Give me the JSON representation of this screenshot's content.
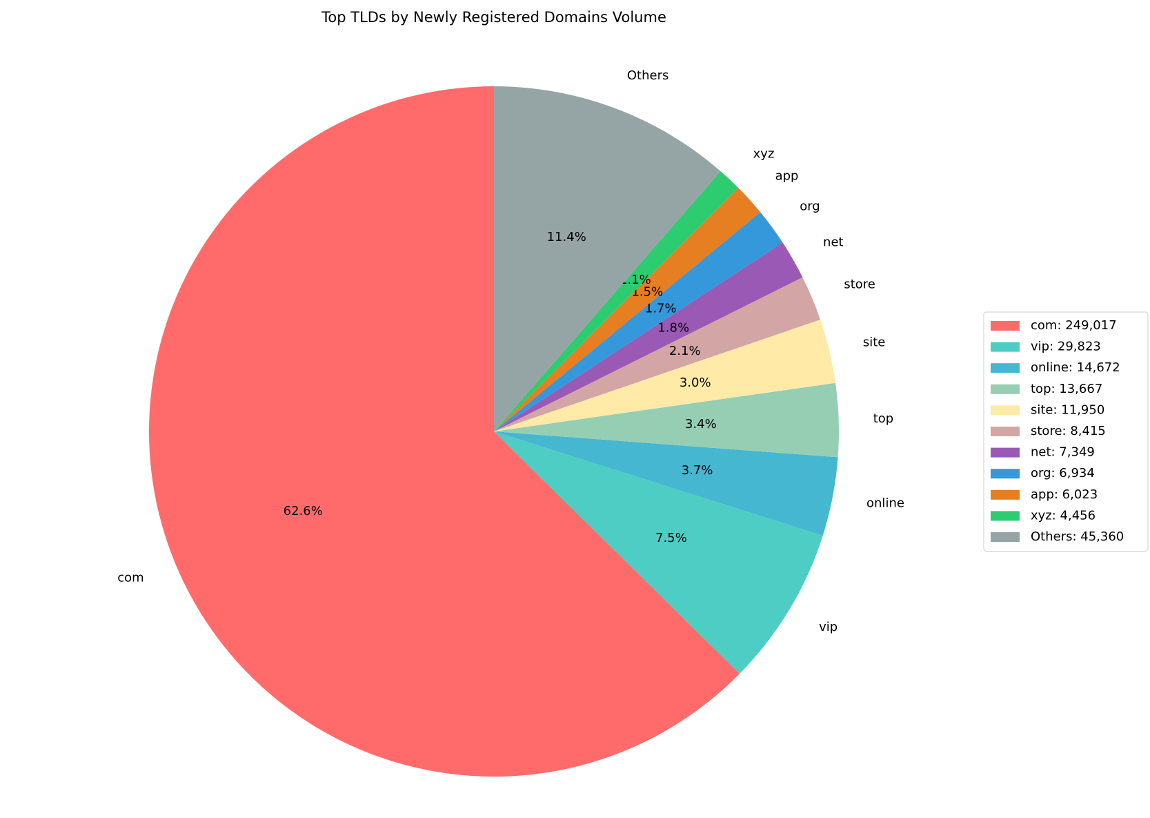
{
  "chart_data": {
    "type": "pie",
    "title": "Top TLDs by Newly Registered Domains Volume",
    "categories": [
      "com",
      "vip",
      "online",
      "top",
      "site",
      "store",
      "net",
      "org",
      "app",
      "xyz",
      "Others"
    ],
    "values": [
      249017,
      29823,
      14672,
      13667,
      11950,
      8415,
      7349,
      6934,
      6023,
      4456,
      45360
    ],
    "value_labels": [
      "62.6%",
      "7.5%",
      "3.7%",
      "3.4%",
      "3.0%",
      "2.1%",
      "1.8%",
      "1.7%",
      "1.5%",
      "1.1%",
      "11.4%"
    ],
    "legend_labels": [
      "com: 249,017",
      "vip: 29,823",
      "online: 14,672",
      "top: 13,667",
      "site: 11,950",
      "store: 8,415",
      "net: 7,349",
      "org: 6,934",
      "app: 6,023",
      "xyz: 4,456",
      "Others: 45,360"
    ],
    "colors": [
      "#ff6b6b",
      "#4ecdc4",
      "#45b7d1",
      "#96ceb4",
      "#ffeaa7",
      "#d4a5a5",
      "#9b59b6",
      "#3498db",
      "#e67e22",
      "#2ecc71",
      "#95a5a6"
    ],
    "start_angle": 90,
    "counterclockwise": true,
    "legend": "right"
  }
}
